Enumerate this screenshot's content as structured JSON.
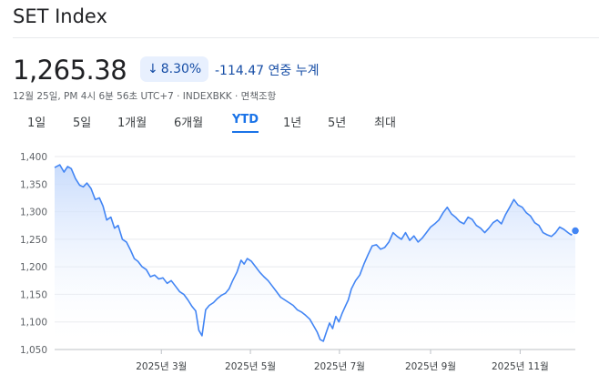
{
  "header": {
    "title": "SET Index"
  },
  "quote": {
    "price": "1,265.38",
    "arrow": "↓",
    "percent": "8.30%",
    "change": "-114.47",
    "change_suffix": "연중 누계",
    "timestamp": "12월 25일, PM 4시 6분 56초 UTC+7 · INDEXBKK · 면책조항"
  },
  "tabs": [
    {
      "label": "1일"
    },
    {
      "label": "5일"
    },
    {
      "label": "1개월"
    },
    {
      "label": "6개월"
    },
    {
      "label": "YTD",
      "active": true
    },
    {
      "label": "1년"
    },
    {
      "label": "5년"
    },
    {
      "label": "최대"
    }
  ],
  "colors": {
    "line": "#4285f4",
    "fill_top": "#c6dafc",
    "accent": "#1a73e8",
    "badge_bg": "#e8f0fe"
  },
  "chart_data": {
    "type": "area",
    "ylim": [
      1050,
      1400
    ],
    "yticks": [
      "1,400",
      "1,350",
      "1,300",
      "1,250",
      "1,200",
      "1,150",
      "1,100",
      "1,050"
    ],
    "ytick_values": [
      1400,
      1350,
      1300,
      1250,
      1200,
      1150,
      1100,
      1050
    ],
    "xticks": [
      {
        "label": "2025년 3월",
        "t": 0.205
      },
      {
        "label": "2025년 5월",
        "t": 0.376
      },
      {
        "label": "2025년 7월",
        "t": 0.547
      },
      {
        "label": "2025년 9월",
        "t": 0.722
      },
      {
        "label": "2025년 11월",
        "t": 0.894
      }
    ],
    "grid": true,
    "series": [
      {
        "values": [
          [
            0.0,
            1380
          ],
          [
            0.01,
            1385
          ],
          [
            0.018,
            1372
          ],
          [
            0.025,
            1382
          ],
          [
            0.032,
            1378
          ],
          [
            0.04,
            1360
          ],
          [
            0.048,
            1348
          ],
          [
            0.055,
            1345
          ],
          [
            0.062,
            1352
          ],
          [
            0.07,
            1342
          ],
          [
            0.078,
            1322
          ],
          [
            0.086,
            1325
          ],
          [
            0.093,
            1310
          ],
          [
            0.1,
            1285
          ],
          [
            0.108,
            1290
          ],
          [
            0.115,
            1270
          ],
          [
            0.122,
            1275
          ],
          [
            0.13,
            1250
          ],
          [
            0.138,
            1245
          ],
          [
            0.146,
            1230
          ],
          [
            0.153,
            1215
          ],
          [
            0.16,
            1210
          ],
          [
            0.168,
            1200
          ],
          [
            0.176,
            1195
          ],
          [
            0.184,
            1182
          ],
          [
            0.192,
            1185
          ],
          [
            0.2,
            1178
          ],
          [
            0.208,
            1180
          ],
          [
            0.216,
            1170
          ],
          [
            0.224,
            1175
          ],
          [
            0.232,
            1165
          ],
          [
            0.24,
            1155
          ],
          [
            0.248,
            1150
          ],
          [
            0.256,
            1140
          ],
          [
            0.264,
            1128
          ],
          [
            0.271,
            1120
          ],
          [
            0.277,
            1085
          ],
          [
            0.283,
            1075
          ],
          [
            0.29,
            1122
          ],
          [
            0.297,
            1130
          ],
          [
            0.305,
            1135
          ],
          [
            0.312,
            1142
          ],
          [
            0.32,
            1148
          ],
          [
            0.328,
            1152
          ],
          [
            0.335,
            1160
          ],
          [
            0.342,
            1175
          ],
          [
            0.35,
            1190
          ],
          [
            0.358,
            1212
          ],
          [
            0.364,
            1205
          ],
          [
            0.37,
            1215
          ],
          [
            0.378,
            1210
          ],
          [
            0.386,
            1200
          ],
          [
            0.394,
            1190
          ],
          [
            0.402,
            1182
          ],
          [
            0.41,
            1175
          ],
          [
            0.418,
            1165
          ],
          [
            0.426,
            1155
          ],
          [
            0.434,
            1145
          ],
          [
            0.442,
            1140
          ],
          [
            0.45,
            1135
          ],
          [
            0.458,
            1130
          ],
          [
            0.466,
            1122
          ],
          [
            0.474,
            1118
          ],
          [
            0.482,
            1112
          ],
          [
            0.49,
            1105
          ],
          [
            0.498,
            1092
          ],
          [
            0.504,
            1082
          ],
          [
            0.51,
            1068
          ],
          [
            0.516,
            1065
          ],
          [
            0.522,
            1082
          ],
          [
            0.528,
            1098
          ],
          [
            0.534,
            1088
          ],
          [
            0.54,
            1110
          ],
          [
            0.546,
            1100
          ],
          [
            0.552,
            1115
          ],
          [
            0.558,
            1128
          ],
          [
            0.564,
            1140
          ],
          [
            0.57,
            1160
          ],
          [
            0.578,
            1175
          ],
          [
            0.586,
            1185
          ],
          [
            0.594,
            1205
          ],
          [
            0.602,
            1222
          ],
          [
            0.61,
            1238
          ],
          [
            0.618,
            1240
          ],
          [
            0.626,
            1232
          ],
          [
            0.634,
            1235
          ],
          [
            0.642,
            1245
          ],
          [
            0.65,
            1262
          ],
          [
            0.658,
            1255
          ],
          [
            0.666,
            1250
          ],
          [
            0.674,
            1262
          ],
          [
            0.682,
            1248
          ],
          [
            0.69,
            1256
          ],
          [
            0.698,
            1245
          ],
          [
            0.706,
            1252
          ],
          [
            0.714,
            1262
          ],
          [
            0.722,
            1272
          ],
          [
            0.73,
            1278
          ],
          [
            0.738,
            1285
          ],
          [
            0.746,
            1298
          ],
          [
            0.754,
            1308
          ],
          [
            0.762,
            1296
          ],
          [
            0.77,
            1290
          ],
          [
            0.778,
            1282
          ],
          [
            0.786,
            1278
          ],
          [
            0.794,
            1290
          ],
          [
            0.802,
            1286
          ],
          [
            0.81,
            1275
          ],
          [
            0.818,
            1270
          ],
          [
            0.826,
            1262
          ],
          [
            0.834,
            1270
          ],
          [
            0.842,
            1280
          ],
          [
            0.85,
            1285
          ],
          [
            0.858,
            1278
          ],
          [
            0.866,
            1295
          ],
          [
            0.874,
            1308
          ],
          [
            0.882,
            1322
          ],
          [
            0.89,
            1312
          ],
          [
            0.898,
            1308
          ],
          [
            0.906,
            1298
          ],
          [
            0.914,
            1292
          ],
          [
            0.922,
            1280
          ],
          [
            0.93,
            1275
          ],
          [
            0.938,
            1262
          ],
          [
            0.946,
            1258
          ],
          [
            0.954,
            1255
          ],
          [
            0.962,
            1262
          ],
          [
            0.97,
            1272
          ],
          [
            0.978,
            1268
          ],
          [
            0.986,
            1262
          ],
          [
            0.992,
            1258
          ],
          [
            1.0,
            1265.38
          ]
        ]
      }
    ]
  }
}
